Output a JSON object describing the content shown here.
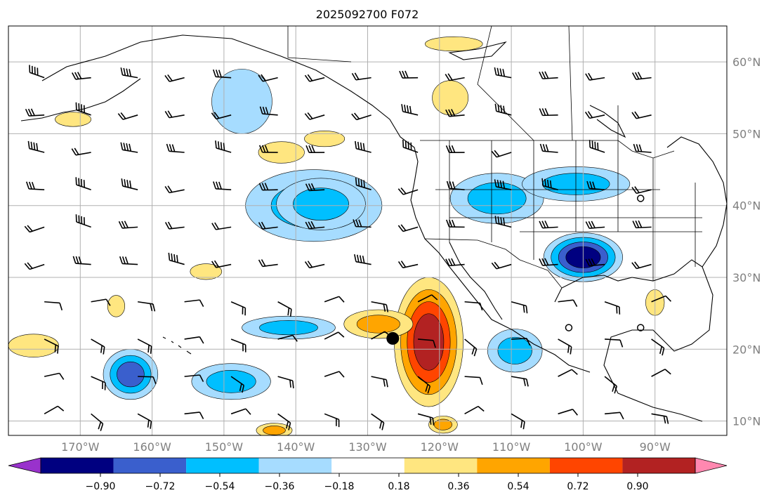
{
  "title": "2025092700 F072",
  "colors": {
    "levels": [
      -0.9,
      -0.72,
      -0.54,
      -0.36,
      -0.18,
      0.18,
      0.36,
      0.54,
      0.72,
      0.9
    ],
    "under": "#9932cc",
    "bins": [
      "#000080",
      "#3a5fcd",
      "#00bfff",
      "#a6dcff",
      "#ffffff",
      "#ffe680",
      "#ffa500",
      "#ff4500",
      "#b22222"
    ],
    "over": "#ff88b0"
  },
  "colorbar": {
    "tick_labels": [
      "−0.90",
      "−0.72",
      "−0.54",
      "−0.36",
      "−0.18",
      "0.18",
      "0.36",
      "0.54",
      "0.72",
      "0.90"
    ]
  },
  "chart_data": {
    "type": "heatmap",
    "title": "2025092700 F072",
    "xlim": [
      -180,
      -80
    ],
    "ylim": [
      8,
      65
    ],
    "x_ticks": [
      -170,
      -160,
      -150,
      -140,
      -130,
      -120,
      -110,
      -100,
      -90
    ],
    "x_tick_labels": [
      "170°W",
      "160°W",
      "150°W",
      "140°W",
      "130°W",
      "120°W",
      "110°W",
      "100°W",
      "90°W"
    ],
    "y_ticks": [
      10,
      20,
      30,
      40,
      50,
      60
    ],
    "y_tick_labels": [
      "10°N",
      "20°N",
      "30°N",
      "40°N",
      "50°N",
      "60°N"
    ],
    "grid": true,
    "colorbar_levels": [
      -0.9,
      -0.72,
      -0.54,
      -0.36,
      -0.18,
      0.18,
      0.36,
      0.54,
      0.72,
      0.9
    ],
    "blobs": [
      {
        "lon": -147.5,
        "lat": 54.5,
        "rx": 4.2,
        "ry": 4.5,
        "value": -0.3
      },
      {
        "lon": -137.5,
        "lat": 40.0,
        "rx": 9.5,
        "ry": 5.0,
        "value": -0.5
      },
      {
        "lon": -136.5,
        "lat": 40.2,
        "rx": 6.2,
        "ry": 3.6,
        "value": -0.5
      },
      {
        "lon": -142.0,
        "lat": 47.4,
        "rx": 3.2,
        "ry": 1.5,
        "value": 0.3
      },
      {
        "lon": -136.0,
        "lat": 49.3,
        "rx": 2.8,
        "ry": 1.1,
        "value": 0.25
      },
      {
        "lon": -112.0,
        "lat": 41.0,
        "rx": 6.5,
        "ry": 3.5,
        "value": -0.5
      },
      {
        "lon": -101.0,
        "lat": 43.0,
        "rx": 7.5,
        "ry": 2.4,
        "value": -0.45
      },
      {
        "lon": -100.0,
        "lat": 32.8,
        "rx": 5.5,
        "ry": 3.4,
        "value": -0.75
      },
      {
        "lon": -121.5,
        "lat": 21.0,
        "rx": 4.8,
        "ry": 9.0,
        "value": 0.75
      },
      {
        "lon": -128.5,
        "lat": 23.5,
        "rx": 4.8,
        "ry": 2.0,
        "value": 0.45
      },
      {
        "lon": -109.5,
        "lat": 19.8,
        "rx": 3.8,
        "ry": 3.0,
        "value": -0.5
      },
      {
        "lon": -141.0,
        "lat": 23.0,
        "rx": 6.5,
        "ry": 1.6,
        "value": -0.4
      },
      {
        "lon": -163.0,
        "lat": 16.5,
        "rx": 3.8,
        "ry": 3.5,
        "value": -0.55
      },
      {
        "lon": -149.0,
        "lat": 15.5,
        "rx": 5.5,
        "ry": 2.5,
        "value": -0.5
      },
      {
        "lon": -118.5,
        "lat": 55.0,
        "rx": 2.5,
        "ry": 2.4,
        "value": 0.3
      },
      {
        "lon": -118.0,
        "lat": 62.5,
        "rx": 4.0,
        "ry": 1.0,
        "value": 0.25
      },
      {
        "lon": -176.5,
        "lat": 20.5,
        "rx": 3.5,
        "ry": 1.6,
        "value": 0.35
      },
      {
        "lon": -171.0,
        "lat": 52.0,
        "rx": 2.5,
        "ry": 1.0,
        "value": 0.3
      },
      {
        "lon": -143.0,
        "lat": 8.7,
        "rx": 2.5,
        "ry": 1.0,
        "value": 0.4
      },
      {
        "lon": -119.5,
        "lat": 9.5,
        "rx": 2.0,
        "ry": 1.2,
        "value": 0.4
      },
      {
        "lon": -152.5,
        "lat": 30.8,
        "rx": 2.2,
        "ry": 1.1,
        "value": 0.25
      },
      {
        "lon": -90.0,
        "lat": 26.5,
        "rx": 1.3,
        "ry": 1.8,
        "value": 0.25
      },
      {
        "lon": -165.0,
        "lat": 26.0,
        "rx": 1.2,
        "ry": 1.5,
        "value": 0.25
      }
    ],
    "markers": [
      {
        "lon": -126.5,
        "lat": 21.5,
        "kind": "filled-circle"
      },
      {
        "lon": -92.0,
        "lat": 41.0,
        "kind": "open-circle"
      },
      {
        "lon": -102.0,
        "lat": 23.0,
        "kind": "open-circle"
      },
      {
        "lon": -92.0,
        "lat": 23.0,
        "kind": "open-circle"
      }
    ]
  }
}
